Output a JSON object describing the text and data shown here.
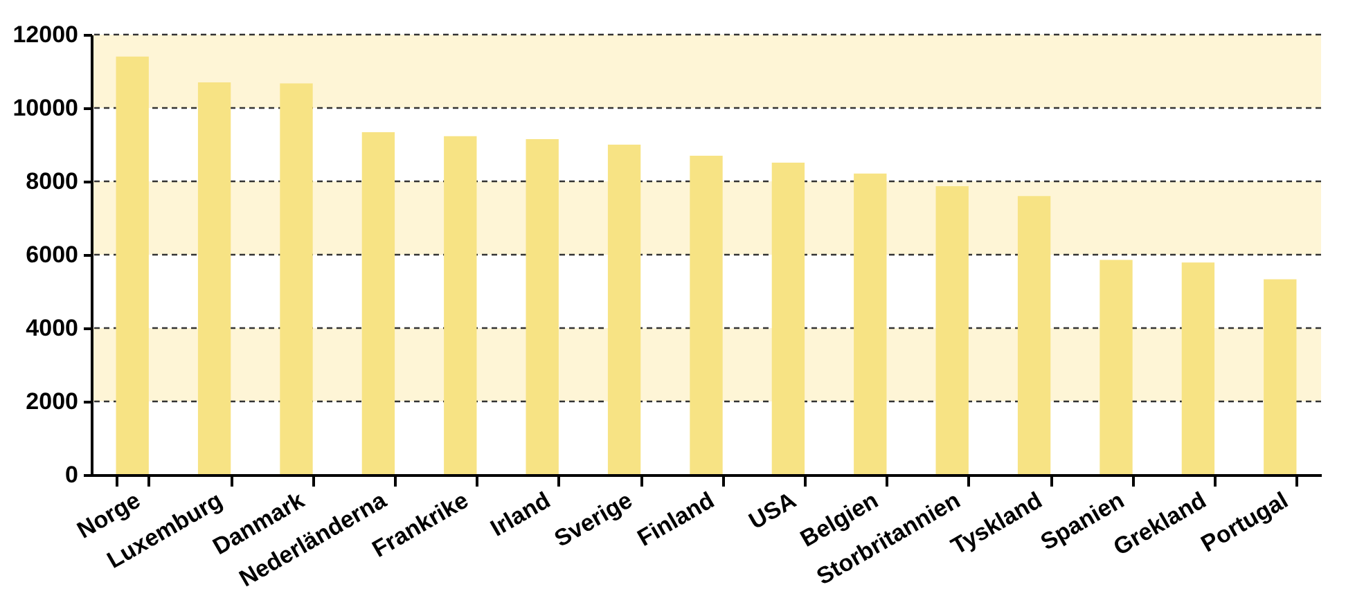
{
  "chart_data": {
    "type": "bar",
    "categories": [
      "Norge",
      "Luxemburg",
      "Danmark",
      "Nederländerna",
      "Frankrike",
      "Irland",
      "Sverige",
      "Finland",
      "USA",
      "Belgien",
      "Storbritannien",
      "Tyskland",
      "Spanien",
      "Grekland",
      "Portugal"
    ],
    "values": [
      11400,
      10700,
      10670,
      9340,
      9230,
      9150,
      9000,
      8700,
      8510,
      8210,
      7870,
      7600,
      5860,
      5790,
      5330
    ],
    "color": "#f7e384",
    "ylim": [
      0,
      12000
    ],
    "yticks": [
      0,
      2000,
      4000,
      6000,
      8000,
      10000,
      12000
    ],
    "grid": "y",
    "line_style": "dashed",
    "bands": [
      {
        "axis": "y",
        "from": 2000,
        "to": 4000,
        "color": "#fef5d6"
      },
      {
        "axis": "y",
        "from": 6000,
        "to": 8000,
        "color": "#fef5d6"
      },
      {
        "axis": "y",
        "from": 10000,
        "to": 12000,
        "color": "#fef5d6"
      }
    ]
  }
}
